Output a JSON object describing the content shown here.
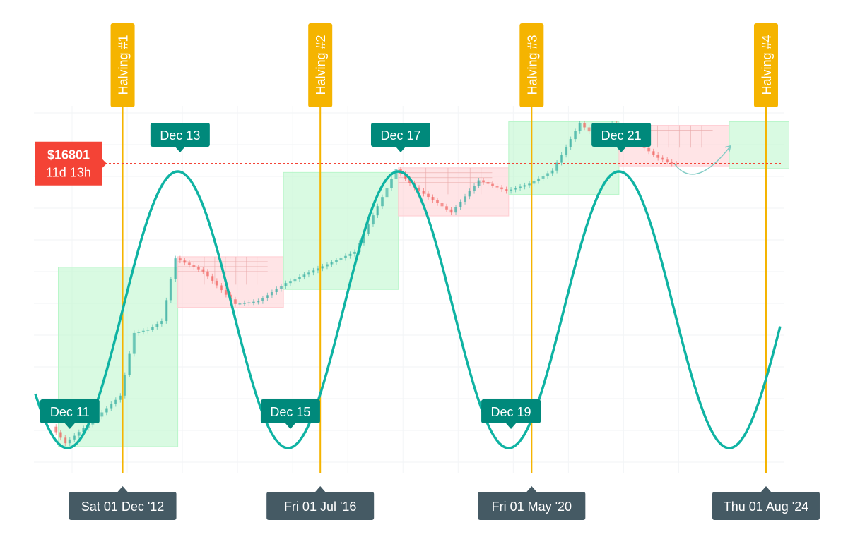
{
  "chart_data": {
    "type": "candlestick",
    "instrument_hint": "price chart with halving markers, cycle wave and rectangles",
    "x_range": [
      "2011-05",
      "2024-12"
    ],
    "price_line": {
      "value": 16801,
      "label": "$16801",
      "countdown": "11d 13h",
      "color": "#f44336"
    },
    "halvings": [
      {
        "label": "Halving #1",
        "date": "2012-12-01",
        "date_label": "Sat 01 Dec '12"
      },
      {
        "label": "Halving #2",
        "date": "2016-07-01",
        "date_label": "Fri 01 Jul '16"
      },
      {
        "label": "Halving #3",
        "date": "2020-05-01",
        "date_label": "Fri 01 May '20"
      },
      {
        "label": "Halving #4",
        "date": "2024-08-01",
        "date_label": "Thu 01 Aug '24"
      }
    ],
    "cycle_wave": {
      "color": "#0fb3a3",
      "troughs": [
        {
          "label": "Dec 11",
          "date": "2011-12"
        },
        {
          "label": "Dec 15",
          "date": "2015-12"
        },
        {
          "label": "Dec 19",
          "date": "2019-12"
        },
        {
          "date": "2023-12"
        }
      ],
      "peaks": [
        {
          "label": "Dec 13",
          "date": "2013-12"
        },
        {
          "label": "Dec 17",
          "date": "2017-12"
        },
        {
          "label": "Dec 21",
          "date": "2021-12"
        }
      ]
    },
    "zones": [
      {
        "kind": "up",
        "from": "2011-10",
        "to": "2013-11"
      },
      {
        "kind": "down",
        "from": "2013-12",
        "to": "2015-10"
      },
      {
        "kind": "up",
        "from": "2015-11",
        "to": "2017-11"
      },
      {
        "kind": "down",
        "from": "2017-12",
        "to": "2019-11"
      },
      {
        "kind": "up",
        "from": "2019-12",
        "to": "2021-11"
      },
      {
        "kind": "down",
        "from": "2021-12",
        "to": "2023-11"
      },
      {
        "kind": "up",
        "from": "2023-12",
        "to": "2024-12"
      }
    ],
    "colors": {
      "halving": "#f5b400",
      "date_label_bg": "#455a64",
      "cycle_label_bg": "#00897b",
      "up_zone": "#b9f6ca",
      "down_zone": "#ffcdd2",
      "candle_up": "#26a69a",
      "candle_down": "#ef5350"
    },
    "grid": true
  }
}
